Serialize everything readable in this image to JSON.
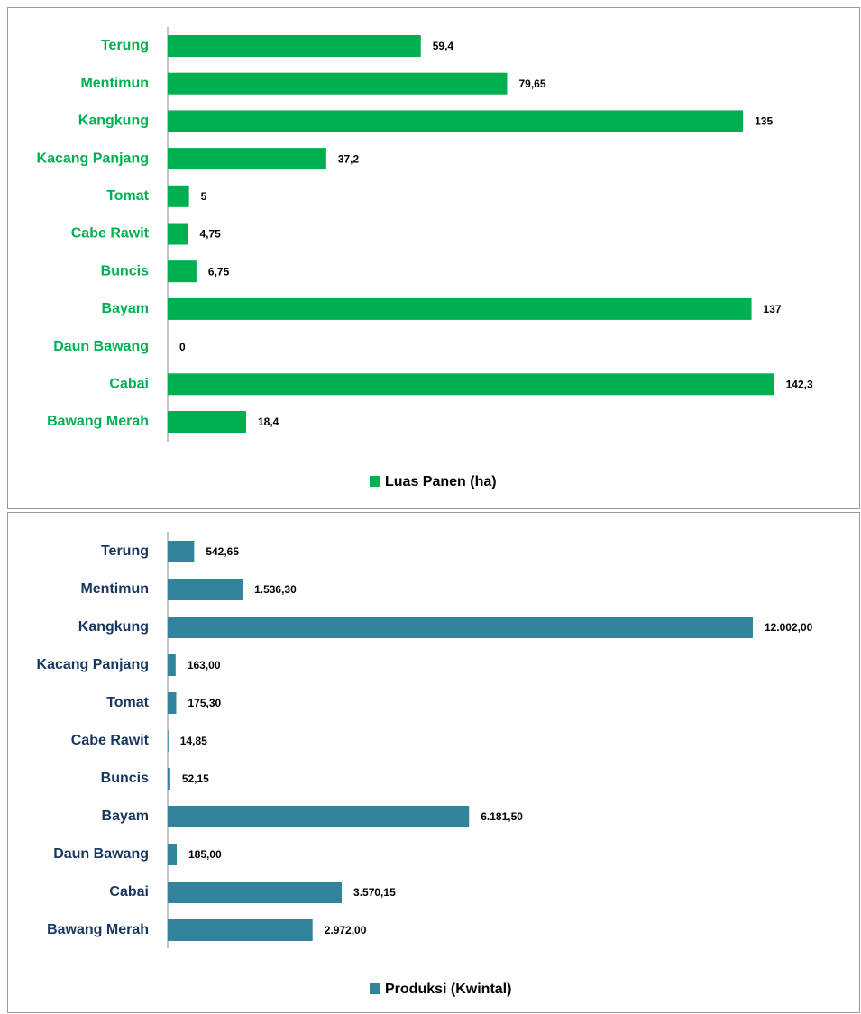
{
  "chart_data": [
    {
      "type": "bar",
      "categories": [
        "Terung",
        "Mentimun",
        "Kangkung",
        "Kacang Panjang",
        "Tomat",
        "Cabe Rawit",
        "Buncis",
        "Bayam",
        "Daun Bawang",
        "Cabai",
        "Bawang Merah"
      ],
      "series": [
        {
          "name": "Luas Panen (ha)",
          "color": "#00b050",
          "values": [
            59.4,
            79.65,
            135,
            37.2,
            5,
            4.75,
            6.75,
            137,
            0,
            142.3,
            18.4
          ],
          "value_labels": [
            "59,4",
            "79,65",
            "135",
            "37,2",
            "5",
            "4,75",
            "6,75",
            "137",
            "0",
            "142,3",
            "18,4"
          ]
        }
      ],
      "xlim": [
        0,
        150
      ],
      "label_color": "#00b050"
    },
    {
      "type": "bar",
      "categories": [
        "Terung",
        "Mentimun",
        "Kangkung",
        "Kacang Panjang",
        "Tomat",
        "Cabe Rawit",
        "Buncis",
        "Bayam",
        "Daun Bawang",
        "Cabai",
        "Bawang Merah"
      ],
      "series": [
        {
          "name": "Produksi (Kwintal)",
          "color": "#31849b",
          "values": [
            542.65,
            1536.3,
            12002,
            163,
            175.3,
            14.85,
            52.15,
            6181.5,
            185,
            3570.15,
            2972
          ],
          "value_labels": [
            "542,65",
            "1.536,30",
            "12.002,00",
            "163,00",
            "175,30",
            "14,85",
            "52,15",
            "6.181,50",
            "185,00",
            "3.570,15",
            "2.972,00"
          ]
        }
      ],
      "xlim": [
        0,
        14000
      ],
      "label_color": "#17375e"
    }
  ]
}
